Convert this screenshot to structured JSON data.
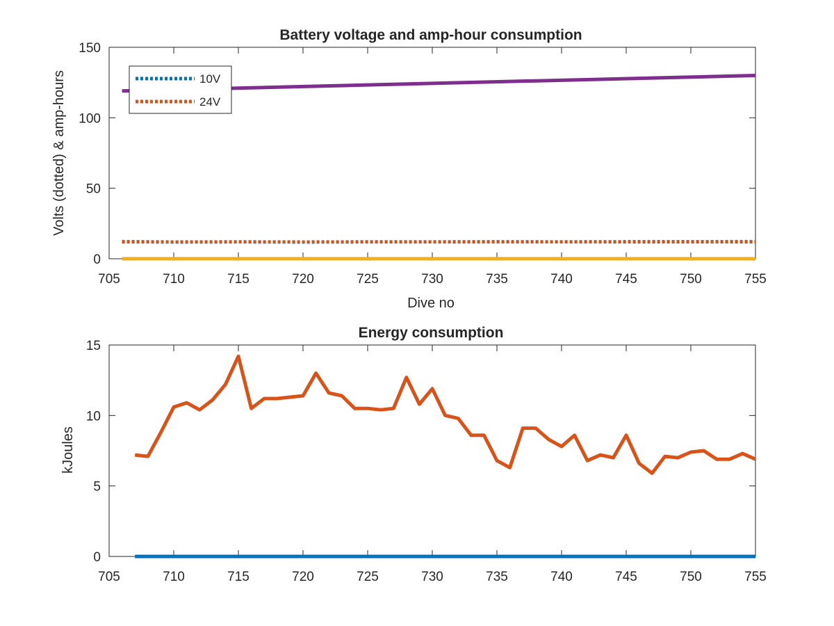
{
  "chart_data": [
    {
      "type": "line",
      "title": "Battery voltage and amp-hour consumption",
      "xlabel": "Dive no",
      "ylabel": "Volts (dotted) & amp-hours",
      "xlim": [
        705,
        755
      ],
      "ylim": [
        0,
        150
      ],
      "xticks": [
        "705",
        "710",
        "715",
        "720",
        "725",
        "730",
        "735",
        "740",
        "745",
        "750",
        "755"
      ],
      "yticks": [
        "0",
        "50",
        "100",
        "150"
      ],
      "legend_position": "top-left",
      "series": [
        {
          "name": "10V",
          "style": "dotted",
          "color": "#0072bd",
          "x": [
            706,
            710,
            715,
            720,
            725,
            730,
            735,
            740,
            745,
            750,
            755
          ],
          "y": [
            12.0,
            11.8,
            11.9,
            11.8,
            11.9,
            11.9,
            12.0,
            12.0,
            11.9,
            12.0,
            12.0
          ]
        },
        {
          "name": "24V",
          "style": "dotted",
          "color": "#d95319",
          "x": [
            706,
            710,
            715,
            720,
            725,
            730,
            735,
            740,
            745,
            750,
            755
          ],
          "y": [
            12.3,
            12.0,
            12.1,
            12.0,
            12.1,
            12.1,
            12.2,
            12.1,
            12.2,
            12.2,
            12.3
          ]
        },
        {
          "style": "solid",
          "color": "#7e2f8e",
          "x": [
            706,
            755
          ],
          "y": [
            119,
            130
          ]
        },
        {
          "style": "solid",
          "color": "#edb120",
          "x": [
            706,
            755
          ],
          "y": [
            0,
            0
          ]
        }
      ]
    },
    {
      "type": "line",
      "title": "Energy consumption",
      "xlabel": "",
      "ylabel": "kJoules",
      "xlim": [
        705,
        755
      ],
      "ylim": [
        0,
        15
      ],
      "xticks": [
        "705",
        "710",
        "715",
        "720",
        "725",
        "730",
        "735",
        "740",
        "745",
        "750",
        "755"
      ],
      "yticks": [
        "0",
        "5",
        "10",
        "15"
      ],
      "series": [
        {
          "style": "solid",
          "color": "#0072bd",
          "x": [
            707,
            755
          ],
          "y": [
            0,
            0
          ]
        },
        {
          "style": "solid",
          "color": "#d95319",
          "x": [
            707,
            708,
            709,
            710,
            711,
            712,
            713,
            714,
            715,
            716,
            717,
            718,
            719,
            720,
            721,
            722,
            723,
            724,
            725,
            726,
            727,
            728,
            729,
            730,
            731,
            732,
            733,
            734,
            735,
            736,
            737,
            738,
            739,
            740,
            741,
            742,
            743,
            744,
            745,
            746,
            747,
            748,
            749,
            750,
            751,
            752,
            753,
            754,
            755
          ],
          "y": [
            7.2,
            7.1,
            8.8,
            10.6,
            10.9,
            10.4,
            11.1,
            12.2,
            14.2,
            10.5,
            11.2,
            11.2,
            11.3,
            11.4,
            13.0,
            11.6,
            11.4,
            10.5,
            10.5,
            10.4,
            10.5,
            12.7,
            10.8,
            11.9,
            10.0,
            9.8,
            8.6,
            8.6,
            6.8,
            6.3,
            9.1,
            9.1,
            8.3,
            7.8,
            8.6,
            6.8,
            7.2,
            7.0,
            8.6,
            6.6,
            5.9,
            7.1,
            7.0,
            7.4,
            7.5,
            6.9,
            6.9,
            7.3,
            6.9
          ]
        }
      ]
    }
  ]
}
